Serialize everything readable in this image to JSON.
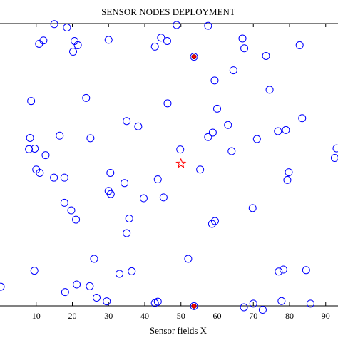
{
  "chart_data": {
    "type": "scatter",
    "title": "SENSOR NODES DEPLOYMENT",
    "xlabel": "Sensor fields X",
    "ylabel": "",
    "xlim": [
      0,
      93.4
    ],
    "ylim": [
      -0.2,
      100
    ],
    "grid": false,
    "x_ticks": [
      10,
      20,
      30,
      40,
      50,
      60,
      70,
      80,
      90
    ],
    "x_tick_labels": [
      "10",
      "20",
      "30",
      "40",
      "50",
      "60",
      "70",
      "80",
      "90"
    ],
    "colors": {
      "nodes": "#0000ff",
      "sink": "#ff0000",
      "cluster_head_fill": "#ff0000",
      "cluster_head_edge": "#8b0000"
    },
    "series": [
      {
        "marker": "circle",
        "points": [
          [
            15.0,
            99.8
          ],
          [
            18.5,
            98.6
          ],
          [
            12.0,
            94.0
          ],
          [
            10.8,
            92.8
          ],
          [
            20.6,
            93.8
          ],
          [
            21.5,
            92.3
          ],
          [
            20.2,
            90.0
          ],
          [
            30.0,
            94.2
          ],
          [
            44.5,
            95.0
          ],
          [
            46.2,
            93.8
          ],
          [
            42.8,
            91.8
          ],
          [
            48.8,
            99.5
          ],
          [
            57.5,
            99.2
          ],
          [
            67.0,
            94.7
          ],
          [
            67.5,
            91.2
          ],
          [
            82.8,
            92.3
          ],
          [
            73.5,
            88.5
          ],
          [
            64.5,
            83.4
          ],
          [
            59.3,
            79.8
          ],
          [
            74.5,
            76.5
          ],
          [
            8.6,
            72.5
          ],
          [
            23.8,
            73.6
          ],
          [
            46.3,
            71.7
          ],
          [
            60.0,
            69.8
          ],
          [
            83.5,
            66.4
          ],
          [
            35.0,
            65.4
          ],
          [
            38.2,
            63.5
          ],
          [
            63.0,
            64.0
          ],
          [
            58.8,
            61.3
          ],
          [
            57.5,
            59.7
          ],
          [
            76.8,
            61.8
          ],
          [
            79.0,
            62.2
          ],
          [
            8.3,
            59.4
          ],
          [
            16.5,
            60.2
          ],
          [
            25.0,
            59.3
          ],
          [
            71.0,
            59.0
          ],
          [
            8.0,
            55.4
          ],
          [
            9.6,
            55.6
          ],
          [
            12.6,
            53.3
          ],
          [
            49.8,
            55.3
          ],
          [
            64.0,
            54.7
          ],
          [
            93.0,
            55.7
          ],
          [
            92.5,
            52.3
          ],
          [
            10.0,
            48.2
          ],
          [
            11.0,
            47.0
          ],
          [
            14.9,
            45.3
          ],
          [
            17.8,
            45.3
          ],
          [
            30.5,
            47.0
          ],
          [
            34.4,
            43.4
          ],
          [
            43.6,
            44.7
          ],
          [
            55.3,
            48.2
          ],
          [
            79.8,
            47.2
          ],
          [
            79.4,
            44.5
          ],
          [
            30.0,
            40.6
          ],
          [
            30.6,
            39.5
          ],
          [
            39.7,
            38.0
          ],
          [
            45.2,
            38.3
          ],
          [
            17.8,
            36.4
          ],
          [
            19.7,
            33.7
          ],
          [
            21.0,
            30.4
          ],
          [
            35.7,
            30.8
          ],
          [
            69.8,
            34.5
          ],
          [
            59.4,
            29.9
          ],
          [
            58.6,
            28.9
          ],
          [
            35.0,
            25.6
          ],
          [
            26.0,
            16.5
          ],
          [
            52.0,
            16.5
          ],
          [
            9.5,
            12.3
          ],
          [
            33.0,
            11.2
          ],
          [
            36.4,
            12.1
          ],
          [
            77.0,
            12.0
          ],
          [
            78.3,
            12.7
          ],
          [
            84.6,
            12.5
          ],
          [
            0.2,
            6.6
          ],
          [
            21.2,
            7.4
          ],
          [
            18.0,
            4.7
          ],
          [
            24.8,
            6.8
          ],
          [
            26.7,
            2.7
          ],
          [
            29.5,
            1.4
          ],
          [
            42.8,
            0.8
          ],
          [
            43.6,
            1.3
          ],
          [
            67.4,
            -0.7
          ],
          [
            70.0,
            0.6
          ],
          [
            72.6,
            -1.6
          ],
          [
            77.8,
            1.5
          ],
          [
            85.8,
            0.6
          ]
        ]
      },
      {
        "marker": "filled-circle",
        "points": [
          [
            53.6,
            88.2
          ],
          [
            53.6,
            -0.3
          ]
        ]
      },
      {
        "marker": "star",
        "points": [
          [
            50.0,
            50.3
          ]
        ]
      }
    ]
  }
}
